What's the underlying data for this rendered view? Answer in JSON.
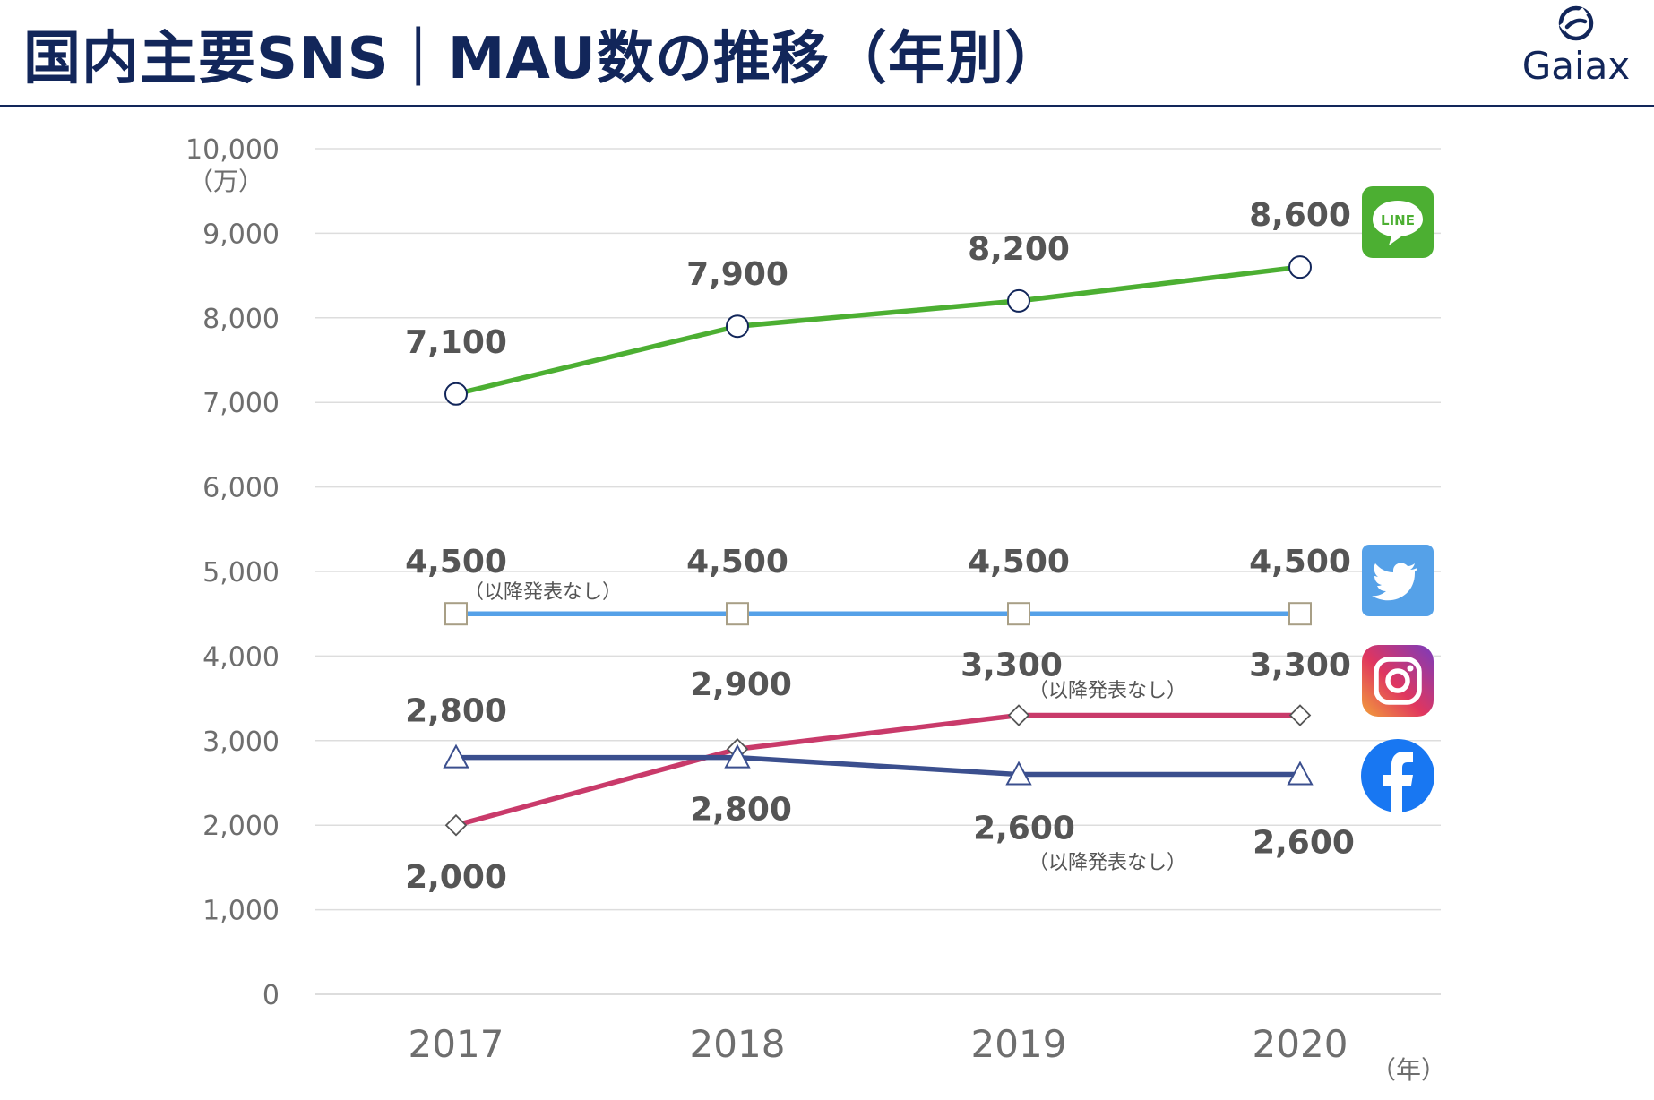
{
  "header": {
    "title": "国内主要SNS｜MAU数の推移（年別）",
    "brand": "Gaiax"
  },
  "colors": {
    "navy": "#12265a",
    "line_green": "#4caf32",
    "twitter_blue": "#55a1e8",
    "instagram_pink": "#c93a6a",
    "facebook_navy": "#3b4f8e",
    "grid": "#dddddd"
  },
  "chart_data": {
    "type": "line",
    "x": [
      "2017",
      "2018",
      "2019",
      "2020"
    ],
    "ylim": [
      0,
      10000
    ],
    "yticks": [
      "0",
      "1,000",
      "2,000",
      "3,000",
      "4,000",
      "5,000",
      "6,000",
      "7,000",
      "8,000",
      "9,000",
      "10,000"
    ],
    "yunit": "（万）",
    "xunit": "（年）",
    "grid": true,
    "series": [
      {
        "icon": "line-app-icon",
        "marker": "circle",
        "values": [
          7100,
          7900,
          8200,
          8600
        ],
        "labels": [
          "7,100",
          "7,900",
          "8,200",
          "8,600"
        ]
      },
      {
        "icon": "twitter-bird-icon",
        "marker": "square",
        "values": [
          4500,
          4500,
          4500,
          4500
        ],
        "labels": [
          "4,500",
          "4,500",
          "4,500",
          "4,500"
        ]
      },
      {
        "icon": "instagram-camera-icon",
        "marker": "diamond",
        "values": [
          2000,
          2900,
          3300,
          3300
        ],
        "labels": [
          "2,000",
          "2,900",
          "3,300",
          "3,300"
        ]
      },
      {
        "icon": "facebook-f-icon",
        "marker": "triangle",
        "values": [
          2800,
          2800,
          2600,
          2600
        ],
        "labels": [
          "2,800",
          "2,800",
          "2,600",
          "2,600"
        ]
      }
    ],
    "annotations": [
      "（以降発表なし）",
      "（以降発表なし）",
      "（以降発表なし）"
    ]
  }
}
